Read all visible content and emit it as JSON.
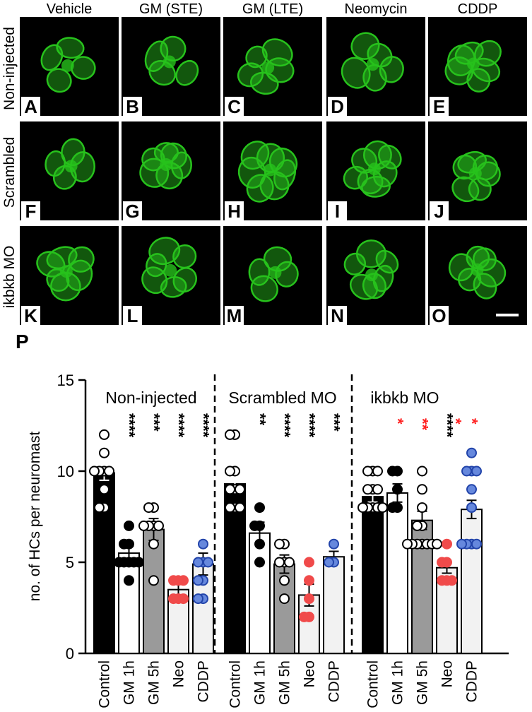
{
  "columns": [
    "Vehicle",
    "GM (STE)",
    "GM (LTE)",
    "Neomycin",
    "CDDP"
  ],
  "rows": [
    "Non-injected",
    "Scrambled",
    "ikbkb MO"
  ],
  "panel_letters": [
    "A",
    "B",
    "C",
    "D",
    "E",
    "F",
    "G",
    "H",
    "I",
    "J",
    "K",
    "L",
    "M",
    "N",
    "O"
  ],
  "panel_p_letter": "P",
  "colors": {
    "hair_cell_green": "#27c21c",
    "black": "#000000",
    "white": "#ffffff",
    "gray": "#9a9a9a",
    "light": "#f2f2f2",
    "red": "#f04a4a",
    "blue": "#6688dd",
    "sig_red": "#ff2020"
  },
  "chart_data": {
    "type": "bar",
    "ylabel": "no. of HCs per neuromast",
    "ylim": [
      0,
      15
    ],
    "yticks": [
      "0",
      "5",
      "10",
      "15"
    ],
    "groups": [
      {
        "name": "Non-injected",
        "categories": [
          "Control",
          "GM 1h",
          "GM 5h",
          "Neo",
          "CDDP"
        ],
        "values": [
          9.9,
          5.5,
          6.8,
          3.5,
          4.9
        ],
        "errors": [
          0.4,
          0.4,
          0.6,
          0.3,
          0.6
        ],
        "points": [
          [
            12,
            11,
            10,
            10,
            10,
            10,
            9,
            8,
            8
          ],
          [
            7,
            6,
            6,
            5,
            5,
            5,
            5,
            5,
            4
          ],
          [
            8,
            8,
            7,
            7,
            7,
            7,
            6,
            4
          ],
          [
            4,
            4,
            4,
            3,
            3,
            3
          ],
          [
            6,
            5,
            5,
            5,
            4,
            4,
            3,
            3
          ]
        ],
        "significance": [
          "",
          "****",
          "***",
          "****",
          "****"
        ],
        "significance_red": [
          "",
          "",
          "",
          "",
          ""
        ]
      },
      {
        "name": "Scrambled MO",
        "categories": [
          "Control",
          "GM 1h",
          "GM 5h",
          "Neo",
          "CDDP"
        ],
        "values": [
          9.3,
          6.6,
          4.9,
          3.2,
          5.3
        ],
        "errors": [
          0.5,
          0.6,
          0.5,
          0.6,
          0.3
        ],
        "points": [
          [
            12,
            12,
            10,
            10,
            9,
            9,
            9,
            8,
            8,
            8
          ],
          [
            8,
            7,
            7,
            6,
            5
          ],
          [
            6,
            6,
            5,
            5,
            5,
            4,
            3
          ],
          [
            5,
            4,
            3,
            2,
            2
          ],
          [
            6,
            5,
            5
          ]
        ],
        "significance": [
          "",
          "**",
          "****",
          "****",
          "***"
        ],
        "significance_red": [
          "",
          "",
          "",
          "",
          ""
        ]
      },
      {
        "name": "ikbkb MO",
        "categories": [
          "Control",
          "GM 1h",
          "GM 5h",
          "Neo",
          "CDDP"
        ],
        "values": [
          8.6,
          8.8,
          7.3,
          4.7,
          7.9
        ],
        "errors": [
          0.3,
          0.5,
          0.5,
          0.3,
          0.5
        ],
        "points": [
          [
            10,
            10,
            10,
            9,
            9,
            9,
            8,
            8,
            8,
            8,
            8
          ],
          [
            10,
            10,
            9,
            8,
            8
          ],
          [
            10,
            9,
            8,
            7,
            7,
            6,
            6,
            6,
            6,
            6,
            6,
            6
          ],
          [
            6,
            5,
            5,
            4,
            4,
            4
          ],
          [
            11,
            10,
            10,
            10,
            9,
            8,
            6,
            6,
            6,
            6
          ]
        ],
        "significance": [
          "",
          "",
          "",
          "****",
          ""
        ],
        "significance_red": [
          "",
          "*",
          "**",
          "*",
          "*"
        ]
      }
    ]
  }
}
